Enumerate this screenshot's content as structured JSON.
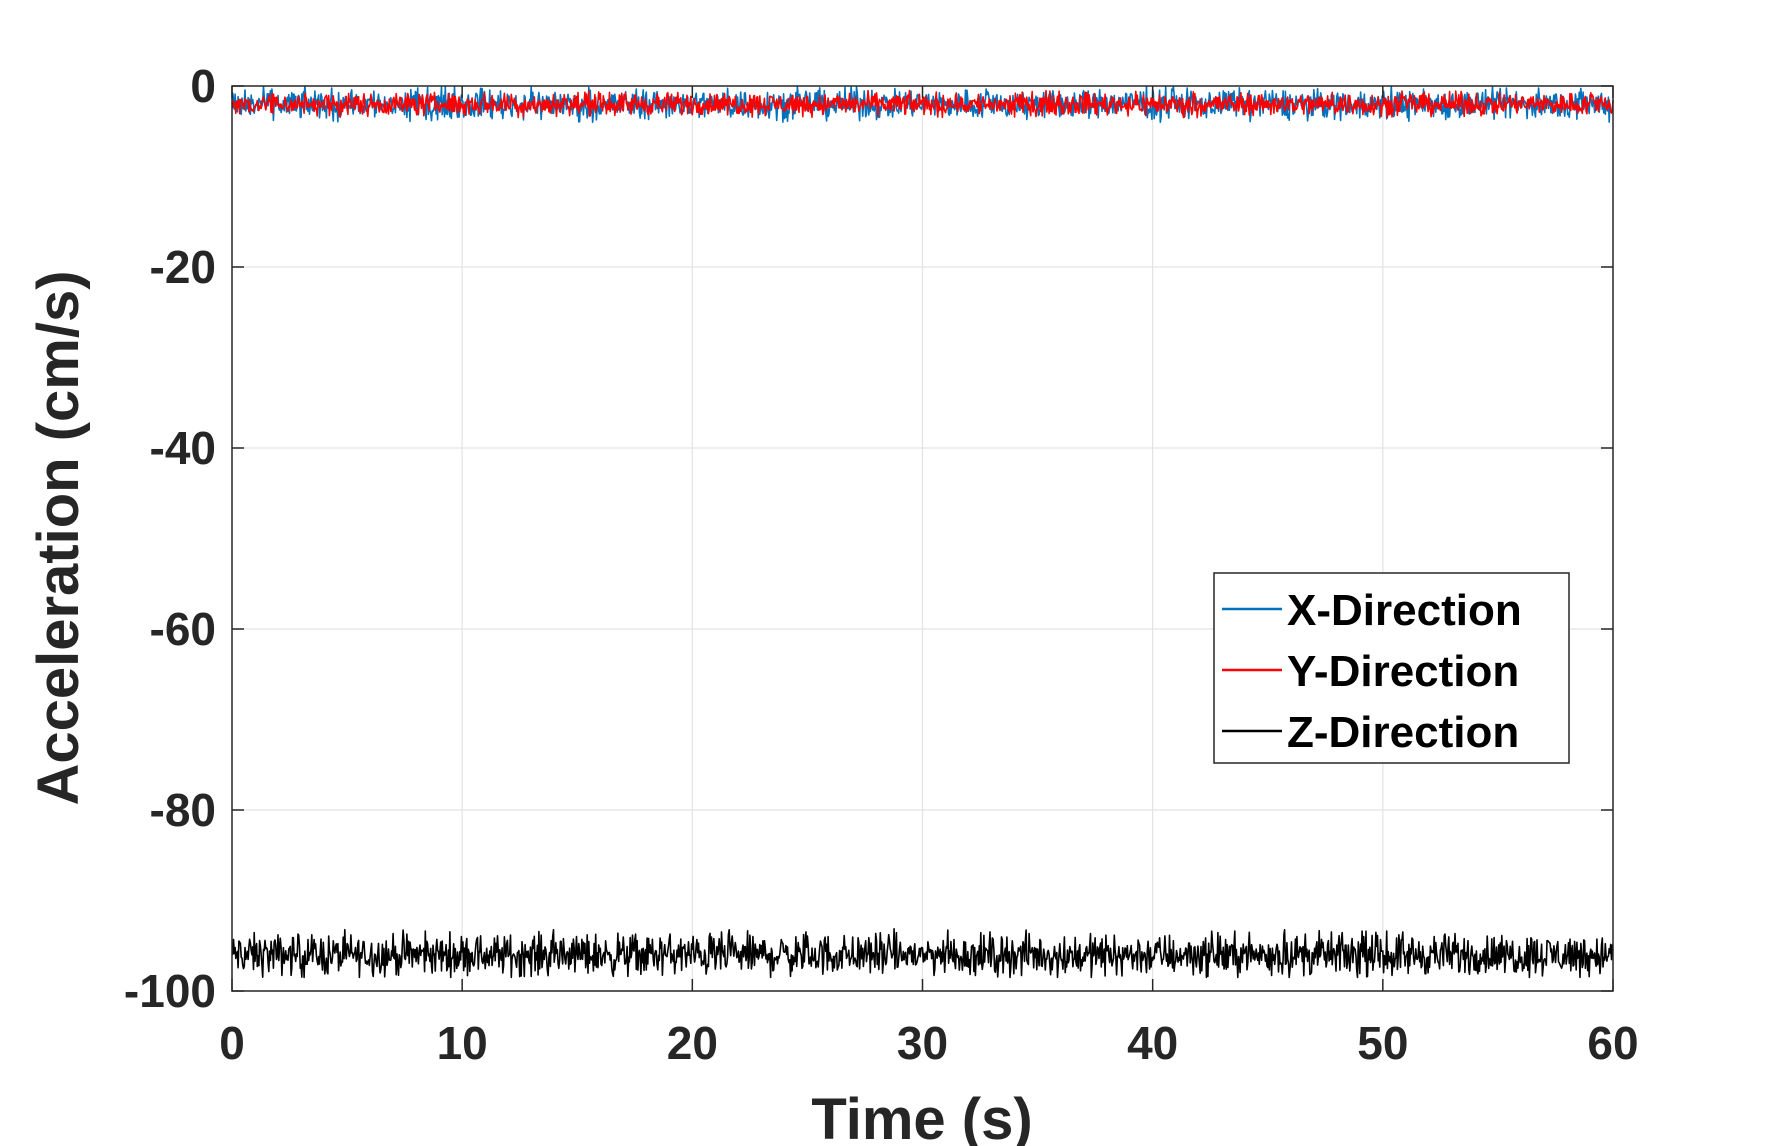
{
  "chart_data": {
    "type": "line",
    "xlabel": "Time (s)",
    "ylabel": "Acceleration (cm/s)",
    "xlim": [
      0,
      60
    ],
    "ylim": [
      -100,
      0
    ],
    "xticks": [
      "0",
      "10",
      "20",
      "30",
      "40",
      "50",
      "60"
    ],
    "yticks": [
      "0",
      "-20",
      "-40",
      "-60",
      "-80",
      "-100"
    ],
    "grid": true,
    "legend_position": "right, below middle",
    "series": [
      {
        "name": "X-Direction",
        "color": "#0072BD",
        "mean": -2.0,
        "noise_range": [
          -4.0,
          0.0
        ],
        "x_range": [
          0,
          60
        ]
      },
      {
        "name": "Y-Direction",
        "color": "#FF0000",
        "mean": -2.0,
        "noise_range": [
          -3.5,
          -0.5
        ],
        "x_range": [
          0,
          60
        ]
      },
      {
        "name": "Z-Direction",
        "color": "#000000",
        "mean": -96.0,
        "noise_range": [
          -98.5,
          -93.0
        ],
        "x_range": [
          0,
          60
        ]
      }
    ]
  }
}
